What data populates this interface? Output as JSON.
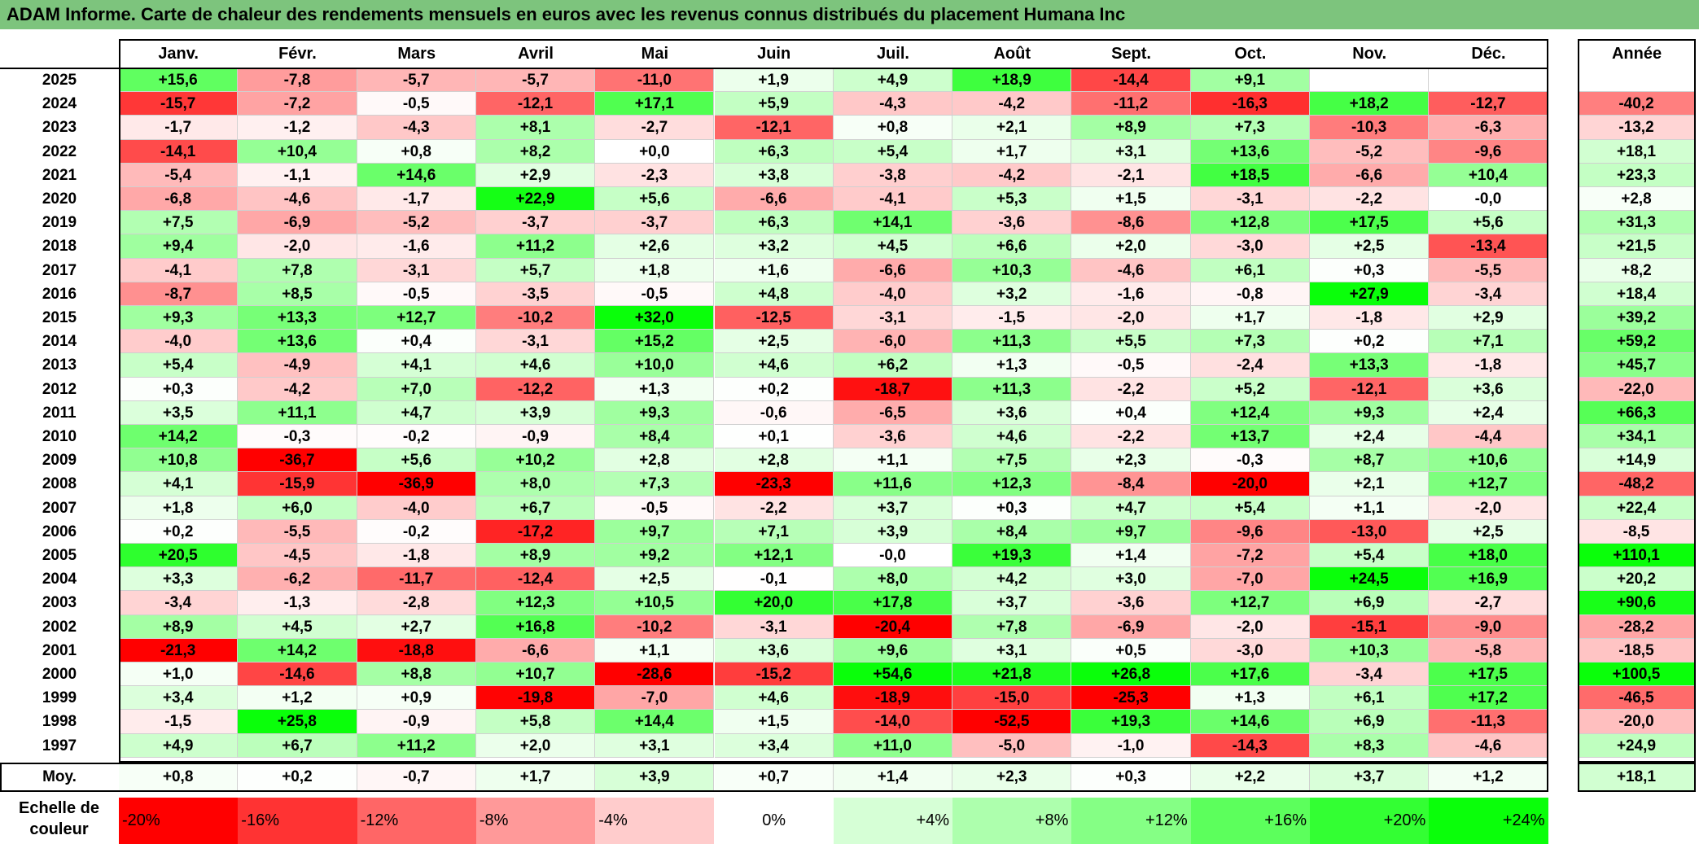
{
  "title": "ADAM Informe. Carte de chaleur des rendements mensuels en euros avec les revenus connus distribués du placement Humana Inc",
  "chart_data": {
    "type": "heatmap",
    "title": "ADAM Informe. Carte de chaleur des rendements mensuels en euros avec les revenus connus distribués du placement Humana Inc",
    "months": [
      "Janv.",
      "Févr.",
      "Mars",
      "Avril",
      "Mai",
      "Juin",
      "Juil.",
      "Août",
      "Sept.",
      "Oct.",
      "Nov.",
      "Déc."
    ],
    "annual_header": "Année",
    "rows": [
      {
        "year": "2025",
        "values": [
          "+15,6",
          "-7,8",
          "-5,7",
          "-5,7",
          "-11,0",
          "+1,9",
          "+4,9",
          "+18,9",
          "-14,4",
          "+9,1",
          "",
          ""
        ],
        "annual": ""
      },
      {
        "year": "2024",
        "values": [
          "-15,7",
          "-7,2",
          "-0,5",
          "-12,1",
          "+17,1",
          "+5,9",
          "-4,3",
          "-4,2",
          "-11,2",
          "-16,3",
          "+18,2",
          "-12,7"
        ],
        "annual": "-40,2"
      },
      {
        "year": "2023",
        "values": [
          "-1,7",
          "-1,2",
          "-4,3",
          "+8,1",
          "-2,7",
          "-12,1",
          "+0,8",
          "+2,1",
          "+8,9",
          "+7,3",
          "-10,3",
          "-6,3"
        ],
        "annual": "-13,2"
      },
      {
        "year": "2022",
        "values": [
          "-14,1",
          "+10,4",
          "+0,8",
          "+8,2",
          "+0,0",
          "+6,3",
          "+5,4",
          "+1,7",
          "+3,1",
          "+13,6",
          "-5,2",
          "-9,6"
        ],
        "annual": "+18,1"
      },
      {
        "year": "2021",
        "values": [
          "-5,4",
          "-1,1",
          "+14,6",
          "+2,9",
          "-2,3",
          "+3,8",
          "-3,8",
          "-4,2",
          "-2,1",
          "+18,5",
          "-6,6",
          "+10,4"
        ],
        "annual": "+23,3"
      },
      {
        "year": "2020",
        "values": [
          "-6,8",
          "-4,6",
          "-1,7",
          "+22,9",
          "+5,6",
          "-6,6",
          "-4,1",
          "+5,3",
          "+1,5",
          "-3,1",
          "-2,2",
          "-0,0"
        ],
        "annual": "+2,8"
      },
      {
        "year": "2019",
        "values": [
          "+7,5",
          "-6,9",
          "-5,2",
          "-3,7",
          "-3,7",
          "+6,3",
          "+14,1",
          "-3,6",
          "-8,6",
          "+12,8",
          "+17,5",
          "+5,6"
        ],
        "annual": "+31,3"
      },
      {
        "year": "2018",
        "values": [
          "+9,4",
          "-2,0",
          "-1,6",
          "+11,2",
          "+2,6",
          "+3,2",
          "+4,5",
          "+6,6",
          "+2,0",
          "-3,0",
          "+2,5",
          "-13,4"
        ],
        "annual": "+21,5"
      },
      {
        "year": "2017",
        "values": [
          "-4,1",
          "+7,8",
          "-3,1",
          "+5,7",
          "+1,8",
          "+1,6",
          "-6,6",
          "+10,3",
          "-4,6",
          "+6,1",
          "+0,3",
          "-5,5"
        ],
        "annual": "+8,2"
      },
      {
        "year": "2016",
        "values": [
          "-8,7",
          "+8,5",
          "-0,5",
          "-3,5",
          "-0,5",
          "+4,8",
          "-4,0",
          "+3,2",
          "-1,6",
          "-0,8",
          "+27,9",
          "-3,4"
        ],
        "annual": "+18,4"
      },
      {
        "year": "2015",
        "values": [
          "+9,3",
          "+13,3",
          "+12,7",
          "-10,2",
          "+32,0",
          "-12,5",
          "-3,1",
          "-1,5",
          "-2,0",
          "+1,7",
          "-1,8",
          "+2,9"
        ],
        "annual": "+39,2"
      },
      {
        "year": "2014",
        "values": [
          "-4,0",
          "+13,6",
          "+0,4",
          "-3,1",
          "+15,2",
          "+2,5",
          "-6,0",
          "+11,3",
          "+5,5",
          "+7,3",
          "+0,2",
          "+7,1"
        ],
        "annual": "+59,2"
      },
      {
        "year": "2013",
        "values": [
          "+5,4",
          "-4,9",
          "+4,1",
          "+4,6",
          "+10,0",
          "+4,6",
          "+6,2",
          "+1,3",
          "-0,5",
          "-2,4",
          "+13,3",
          "-1,8"
        ],
        "annual": "+45,7"
      },
      {
        "year": "2012",
        "values": [
          "+0,3",
          "-4,2",
          "+7,0",
          "-12,2",
          "+1,3",
          "+0,2",
          "-18,7",
          "+11,3",
          "-2,2",
          "+5,2",
          "-12,1",
          "+3,6"
        ],
        "annual": "-22,0"
      },
      {
        "year": "2011",
        "values": [
          "+3,5",
          "+11,1",
          "+4,7",
          "+3,9",
          "+9,3",
          "-0,6",
          "-6,5",
          "+3,6",
          "+0,4",
          "+12,4",
          "+9,3",
          "+2,4"
        ],
        "annual": "+66,3"
      },
      {
        "year": "2010",
        "values": [
          "+14,2",
          "-0,3",
          "-0,2",
          "-0,9",
          "+8,4",
          "+0,1",
          "-3,6",
          "+4,6",
          "-2,2",
          "+13,7",
          "+2,4",
          "-4,4"
        ],
        "annual": "+34,1"
      },
      {
        "year": "2009",
        "values": [
          "+10,8",
          "-36,7",
          "+5,6",
          "+10,2",
          "+2,8",
          "+2,8",
          "+1,1",
          "+7,5",
          "+2,3",
          "-0,3",
          "+8,7",
          "+10,6"
        ],
        "annual": "+14,9"
      },
      {
        "year": "2008",
        "values": [
          "+4,1",
          "-15,9",
          "-36,9",
          "+8,0",
          "+7,3",
          "-23,3",
          "+11,6",
          "+12,3",
          "-8,4",
          "-20,0",
          "+2,1",
          "+12,7"
        ],
        "annual": "-48,2"
      },
      {
        "year": "2007",
        "values": [
          "+1,8",
          "+6,0",
          "-4,0",
          "+6,7",
          "-0,5",
          "-2,2",
          "+3,7",
          "+0,3",
          "+4,7",
          "+5,4",
          "+1,1",
          "-2,0"
        ],
        "annual": "+22,4"
      },
      {
        "year": "2006",
        "values": [
          "+0,2",
          "-5,5",
          "-0,2",
          "-17,2",
          "+9,7",
          "+7,1",
          "+3,9",
          "+8,4",
          "+9,7",
          "-9,6",
          "-13,0",
          "+2,5"
        ],
        "annual": "-8,5"
      },
      {
        "year": "2005",
        "values": [
          "+20,5",
          "-4,5",
          "-1,8",
          "+8,9",
          "+9,2",
          "+12,1",
          "-0,0",
          "+19,3",
          "+1,4",
          "-7,2",
          "+5,4",
          "+18,0"
        ],
        "annual": "+110,1"
      },
      {
        "year": "2004",
        "values": [
          "+3,3",
          "-6,2",
          "-11,7",
          "-12,4",
          "+2,5",
          "-0,1",
          "+8,0",
          "+4,2",
          "+3,0",
          "-7,0",
          "+24,5",
          "+16,9"
        ],
        "annual": "+20,2"
      },
      {
        "year": "2003",
        "values": [
          "-3,4",
          "-1,3",
          "-2,8",
          "+12,3",
          "+10,5",
          "+20,0",
          "+17,8",
          "+3,7",
          "-3,6",
          "+12,7",
          "+6,9",
          "-2,7"
        ],
        "annual": "+90,6"
      },
      {
        "year": "2002",
        "values": [
          "+8,9",
          "+4,5",
          "+2,7",
          "+16,8",
          "-10,2",
          "-3,1",
          "-20,4",
          "+7,8",
          "-6,9",
          "-2,0",
          "-15,1",
          "-9,0"
        ],
        "annual": "-28,2"
      },
      {
        "year": "2001",
        "values": [
          "-21,3",
          "+14,2",
          "-18,8",
          "-6,6",
          "+1,1",
          "+3,6",
          "+9,6",
          "+3,1",
          "+0,5",
          "-3,0",
          "+10,3",
          "-5,8"
        ],
        "annual": "-18,5"
      },
      {
        "year": "2000",
        "values": [
          "+1,0",
          "-14,6",
          "+8,8",
          "+10,7",
          "-28,6",
          "-15,2",
          "+54,6",
          "+21,8",
          "+26,8",
          "+17,6",
          "-3,4",
          "+17,5"
        ],
        "annual": "+100,5"
      },
      {
        "year": "1999",
        "values": [
          "+3,4",
          "+1,2",
          "+0,9",
          "-19,8",
          "-7,0",
          "+4,6",
          "-18,9",
          "-15,0",
          "-25,3",
          "+1,3",
          "+6,1",
          "+17,2"
        ],
        "annual": "-46,5"
      },
      {
        "year": "1998",
        "values": [
          "-1,5",
          "+25,8",
          "-0,9",
          "+5,8",
          "+14,4",
          "+1,5",
          "-14,0",
          "-52,5",
          "+19,3",
          "+14,6",
          "+6,9",
          "-11,3"
        ],
        "annual": "-20,0"
      },
      {
        "year": "1997",
        "values": [
          "+4,9",
          "+6,7",
          "+11,2",
          "+2,0",
          "+3,1",
          "+3,4",
          "+11,0",
          "-5,0",
          "-1,0",
          "-14,3",
          "+8,3",
          "-4,6"
        ],
        "annual": "+24,9"
      }
    ],
    "average": {
      "label": "Moy.",
      "values": [
        "+0,8",
        "+0,2",
        "-0,7",
        "+1,7",
        "+3,9",
        "+0,7",
        "+1,4",
        "+2,3",
        "+0,3",
        "+2,2",
        "+3,7",
        "+1,2"
      ],
      "annual": "+18,1"
    },
    "scale": {
      "label": "Echelle de couleur",
      "stops": [
        {
          "label": "-20%",
          "value": -20,
          "color": "#ff0000"
        },
        {
          "label": "-16%",
          "value": -16,
          "color": "#ff3333"
        },
        {
          "label": "-12%",
          "value": -12,
          "color": "#ff6666"
        },
        {
          "label": "-8%",
          "value": -8,
          "color": "#ff9999"
        },
        {
          "label": "-4%",
          "value": -4,
          "color": "#ffcccc"
        },
        {
          "label": "0%",
          "value": 0,
          "color": "#ffffff"
        },
        {
          "label": "+4%",
          "value": 4,
          "color": "#d6ffd6"
        },
        {
          "label": "+8%",
          "value": 8,
          "color": "#adffad"
        },
        {
          "label": "+12%",
          "value": 12,
          "color": "#85ff85"
        },
        {
          "label": "+16%",
          "value": 16,
          "color": "#5cff5c"
        },
        {
          "label": "+20%",
          "value": 20,
          "color": "#33ff33"
        },
        {
          "label": "+24%",
          "value": 24,
          "color": "#0aff0a"
        }
      ]
    }
  }
}
